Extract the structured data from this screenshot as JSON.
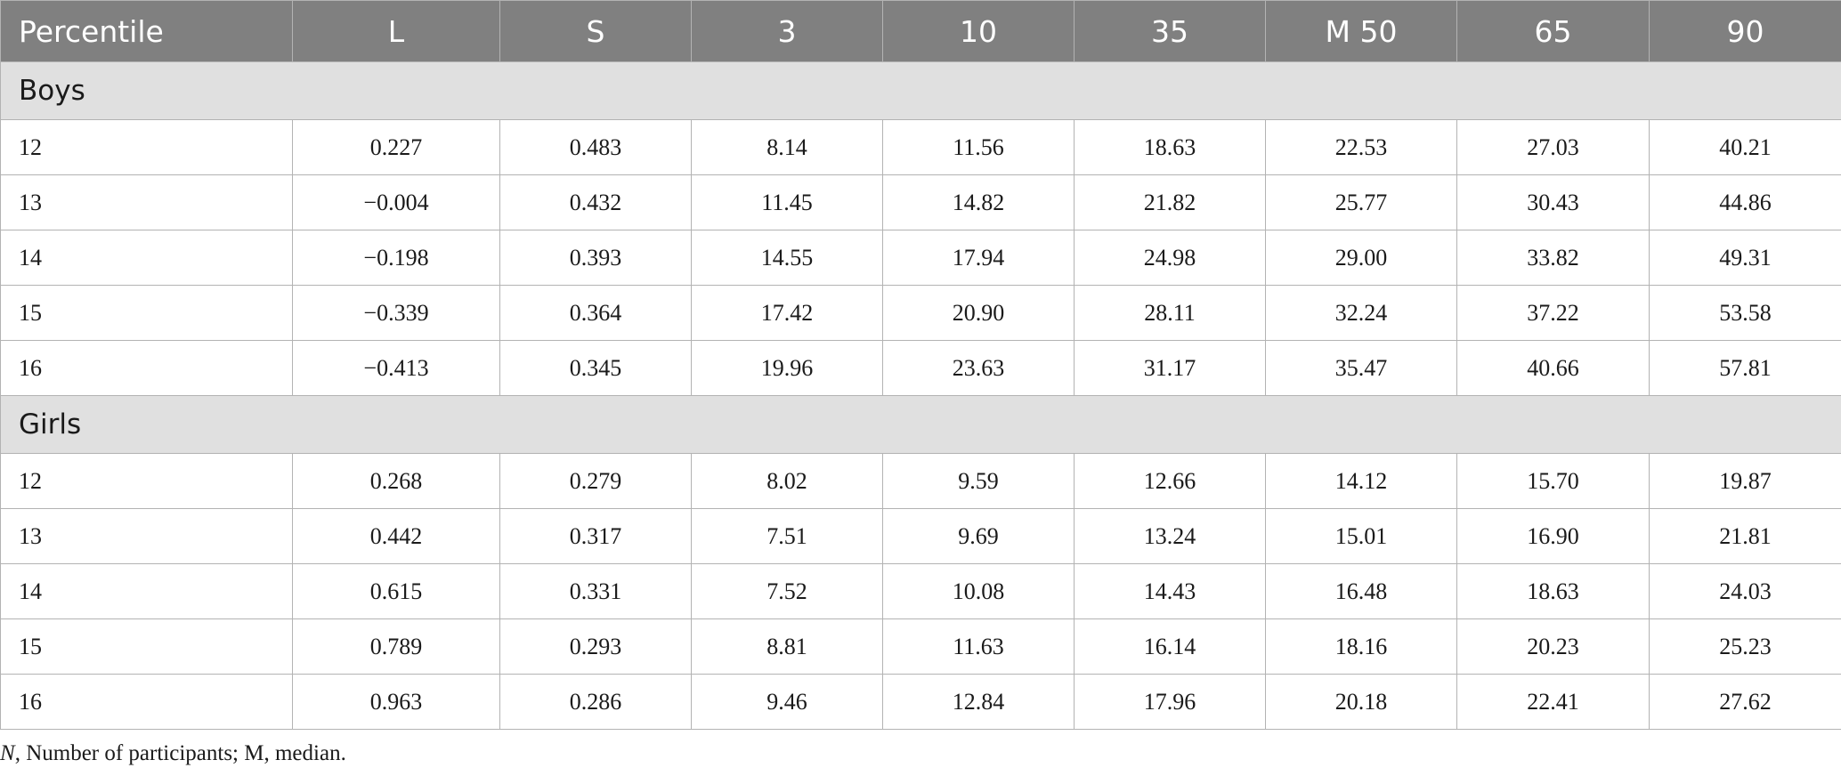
{
  "table": {
    "headers": [
      "Percentile",
      "L",
      "S",
      "3",
      "10",
      "35",
      "M 50",
      "65",
      "90"
    ],
    "groups": [
      {
        "label": "Boys",
        "rows": [
          [
            "12",
            "0.227",
            "0.483",
            "8.14",
            "11.56",
            "18.63",
            "22.53",
            "27.03",
            "40.21"
          ],
          [
            "13",
            "−0.004",
            "0.432",
            "11.45",
            "14.82",
            "21.82",
            "25.77",
            "30.43",
            "44.86"
          ],
          [
            "14",
            "−0.198",
            "0.393",
            "14.55",
            "17.94",
            "24.98",
            "29.00",
            "33.82",
            "49.31"
          ],
          [
            "15",
            "−0.339",
            "0.364",
            "17.42",
            "20.90",
            "28.11",
            "32.24",
            "37.22",
            "53.58"
          ],
          [
            "16",
            "−0.413",
            "0.345",
            "19.96",
            "23.63",
            "31.17",
            "35.47",
            "40.66",
            "57.81"
          ]
        ]
      },
      {
        "label": "Girls",
        "rows": [
          [
            "12",
            "0.268",
            "0.279",
            "8.02",
            "9.59",
            "12.66",
            "14.12",
            "15.70",
            "19.87"
          ],
          [
            "13",
            "0.442",
            "0.317",
            "7.51",
            "9.69",
            "13.24",
            "15.01",
            "16.90",
            "21.81"
          ],
          [
            "14",
            "0.615",
            "0.331",
            "7.52",
            "10.08",
            "14.43",
            "16.48",
            "18.63",
            "24.03"
          ],
          [
            "15",
            "0.789",
            "0.293",
            "8.81",
            "11.63",
            "16.14",
            "18.16",
            "20.23",
            "25.23"
          ],
          [
            "16",
            "0.963",
            "0.286",
            "9.46",
            "12.84",
            "17.96",
            "20.18",
            "22.41",
            "27.62"
          ]
        ]
      }
    ]
  },
  "footnote": {
    "symbol": "N",
    "text": ", Number of participants; M, median."
  },
  "colors": {
    "header_bg": "#808080",
    "group_bg": "#e0e0e0",
    "border": "#b3b3b3"
  }
}
